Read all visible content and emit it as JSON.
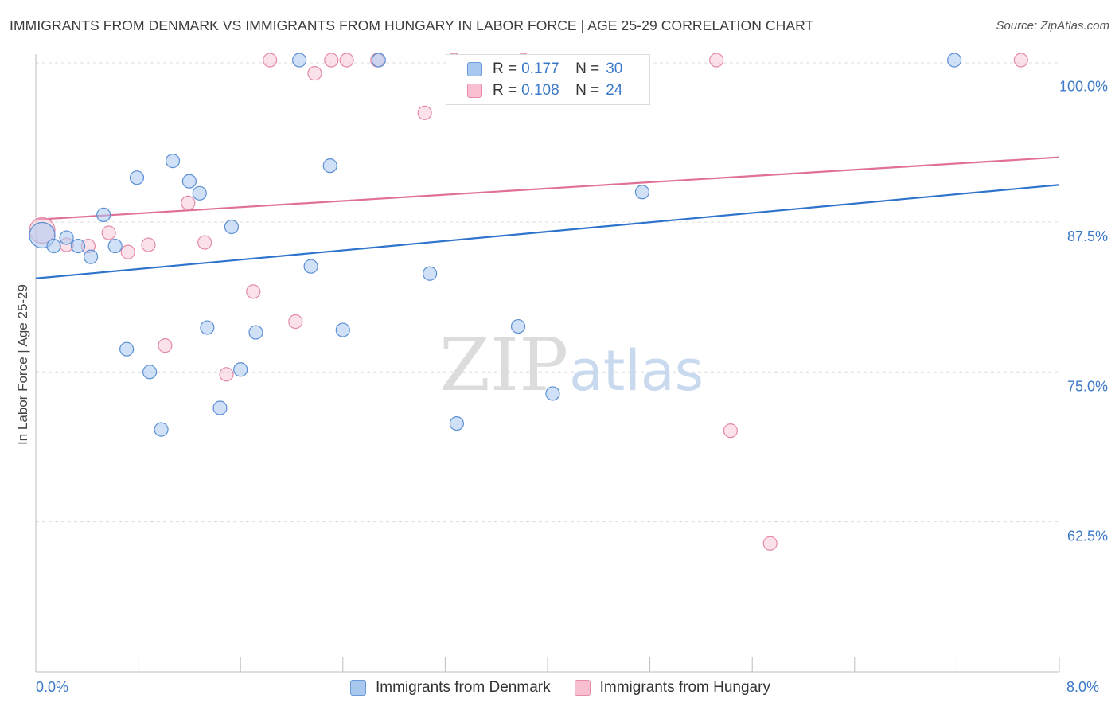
{
  "header": {
    "title": "IMMIGRANTS FROM DENMARK VS IMMIGRANTS FROM HUNGARY IN LABOR FORCE | AGE 25-29 CORRELATION CHART",
    "source": "Source: ZipAtlas.com"
  },
  "watermark": {
    "zip": "ZIP",
    "atlas": "atlas"
  },
  "legend": {
    "rows": [
      {
        "r_label": "R =",
        "r_value": "0.177",
        "n_label": "N =",
        "n_value": "30",
        "color": "#a9c8f0",
        "border": "#6a9bd8"
      },
      {
        "r_label": "R =",
        "r_value": "0.108",
        "n_label": "N =",
        "n_value": "24",
        "color": "#f7bfd0",
        "border": "#e88aa8"
      }
    ]
  },
  "bottom_legend": {
    "denmark": "Immigrants from Denmark",
    "hungary": "Immigrants from Hungary"
  },
  "chart_data": {
    "type": "scatter",
    "ylabel": "In Labor Force | Age 25-29",
    "xlim": [
      0.0,
      8.0
    ],
    "ylim": [
      50.0,
      101.5
    ],
    "x_tick_labels": [
      {
        "value": 0.0,
        "label": "0.0%"
      },
      {
        "value": 8.0,
        "label": "8.0%"
      }
    ],
    "y_tick_labels": [
      {
        "value": 100.0,
        "label": "100.0%"
      },
      {
        "value": 87.5,
        "label": "87.5%"
      },
      {
        "value": 75.0,
        "label": "75.0%"
      },
      {
        "value": 62.5,
        "label": "62.5%"
      }
    ],
    "grid": true,
    "legend_position": "top-center",
    "colors": {
      "denmark_fill": "#a9c8f0",
      "denmark_stroke": "#5b8fd4",
      "denmark_line": "#2f74cc",
      "hungary_fill": "#f7bfd0",
      "hungary_stroke": "#e58aa7",
      "hungary_line": "#e0709a",
      "tick_label": "#3d79c9",
      "grid": "#dddddd"
    },
    "series": [
      {
        "name": "Immigrants from Denmark",
        "points": [
          [
            0.05,
            86.4
          ],
          [
            0.14,
            85.5
          ],
          [
            0.24,
            86.2
          ],
          [
            0.33,
            85.5
          ],
          [
            0.43,
            84.6
          ],
          [
            0.53,
            88.1
          ],
          [
            0.62,
            85.5
          ],
          [
            0.71,
            76.9
          ],
          [
            0.79,
            91.2
          ],
          [
            0.89,
            75.0
          ],
          [
            0.98,
            70.2
          ],
          [
            1.07,
            92.6
          ],
          [
            1.2,
            90.9
          ],
          [
            1.28,
            89.9
          ],
          [
            1.34,
            78.7
          ],
          [
            1.44,
            72.0
          ],
          [
            1.53,
            87.1
          ],
          [
            1.6,
            75.2
          ],
          [
            1.72,
            78.3
          ],
          [
            2.06,
            101.0
          ],
          [
            2.15,
            83.8
          ],
          [
            2.3,
            92.2
          ],
          [
            2.4,
            78.5
          ],
          [
            2.68,
            101.0
          ],
          [
            3.08,
            83.2
          ],
          [
            3.29,
            70.7
          ],
          [
            3.77,
            78.8
          ],
          [
            4.04,
            73.2
          ],
          [
            4.74,
            90.0
          ],
          [
            7.18,
            101.0
          ]
        ],
        "trend": [
          [
            0.0,
            82.8
          ],
          [
            8.0,
            90.6
          ]
        ]
      },
      {
        "name": "Immigrants from Hungary",
        "points": [
          [
            0.05,
            86.8
          ],
          [
            0.24,
            85.6
          ],
          [
            0.41,
            85.5
          ],
          [
            0.57,
            86.6
          ],
          [
            0.72,
            85.0
          ],
          [
            0.88,
            85.6
          ],
          [
            1.01,
            77.2
          ],
          [
            1.19,
            89.1
          ],
          [
            1.32,
            85.8
          ],
          [
            1.49,
            74.8
          ],
          [
            1.7,
            81.7
          ],
          [
            1.83,
            101.0
          ],
          [
            2.03,
            79.2
          ],
          [
            2.18,
            99.9
          ],
          [
            2.31,
            101.0
          ],
          [
            2.43,
            101.0
          ],
          [
            2.67,
            101.0
          ],
          [
            3.04,
            96.6
          ],
          [
            3.27,
            101.0
          ],
          [
            3.81,
            101.0
          ],
          [
            5.32,
            101.0
          ],
          [
            5.43,
            70.1
          ],
          [
            5.74,
            60.7
          ],
          [
            7.7,
            101.0
          ]
        ],
        "trend": [
          [
            0.0,
            87.7
          ],
          [
            8.0,
            92.9
          ]
        ]
      }
    ]
  }
}
